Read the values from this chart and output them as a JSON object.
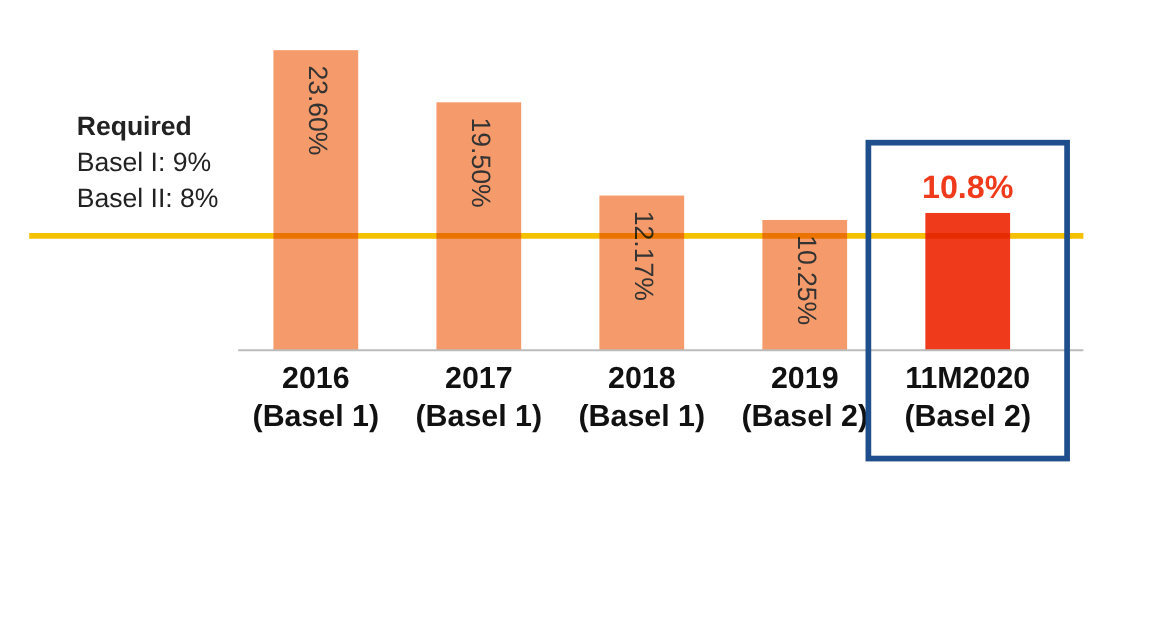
{
  "chart_data": {
    "type": "bar",
    "categories": [
      "2016\n(Basel 1)",
      "2017\n(Basel 1)",
      "2018\n(Basel 1)",
      "2019\n(Basel 2)",
      "11M2020\n(Basel 2)"
    ],
    "values": [
      23.6,
      19.5,
      12.17,
      10.25,
      10.8
    ],
    "value_labels": [
      "23.60%",
      "19.50%",
      "12.17%",
      "10.25%",
      "10.8%"
    ],
    "colors": [
      "#f59a6a",
      "#f59a6a",
      "#f59a6a",
      "#f59a6a",
      "#f03a1c"
    ],
    "ref_lines": [
      {
        "axis": "y",
        "value": 9,
        "label": "Required\nBasel I: 9%\nBasel II: 8%",
        "color": "#f5c000"
      }
    ]
  }
}
